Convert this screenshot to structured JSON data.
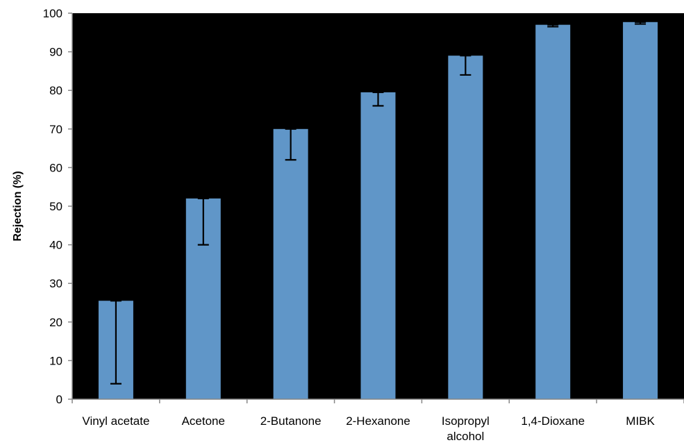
{
  "chart_data": {
    "type": "bar",
    "title": "",
    "xlabel": "",
    "ylabel": "Rejection (%)",
    "categories": [
      "Vinyl acetate",
      "Acetone",
      "2-Butanone",
      "2-Hexanone",
      "Isopropyl alcohol",
      "1,4-Dioxane",
      "MIBK"
    ],
    "category_lines": [
      [
        "Vinyl acetate"
      ],
      [
        "Acetone"
      ],
      [
        "2-Butanone"
      ],
      [
        "2-Hexanone"
      ],
      [
        "Isopropyl",
        "alcohol"
      ],
      [
        "1,4-Dioxane"
      ],
      [
        "MIBK"
      ]
    ],
    "values": [
      25.5,
      52,
      70,
      79.5,
      89,
      97,
      97.7
    ],
    "error_lower": [
      4,
      40,
      62,
      76,
      84,
      96.5,
      97.2
    ],
    "ylim": [
      0,
      100
    ],
    "yticks": [
      0,
      10,
      20,
      30,
      40,
      50,
      60,
      70,
      80,
      90,
      100
    ],
    "grid": false,
    "legend": "none",
    "colors": {
      "bar": "#6096C8",
      "plot_background": "#000000",
      "error_bar": "#000000",
      "axis": "#868686"
    }
  }
}
